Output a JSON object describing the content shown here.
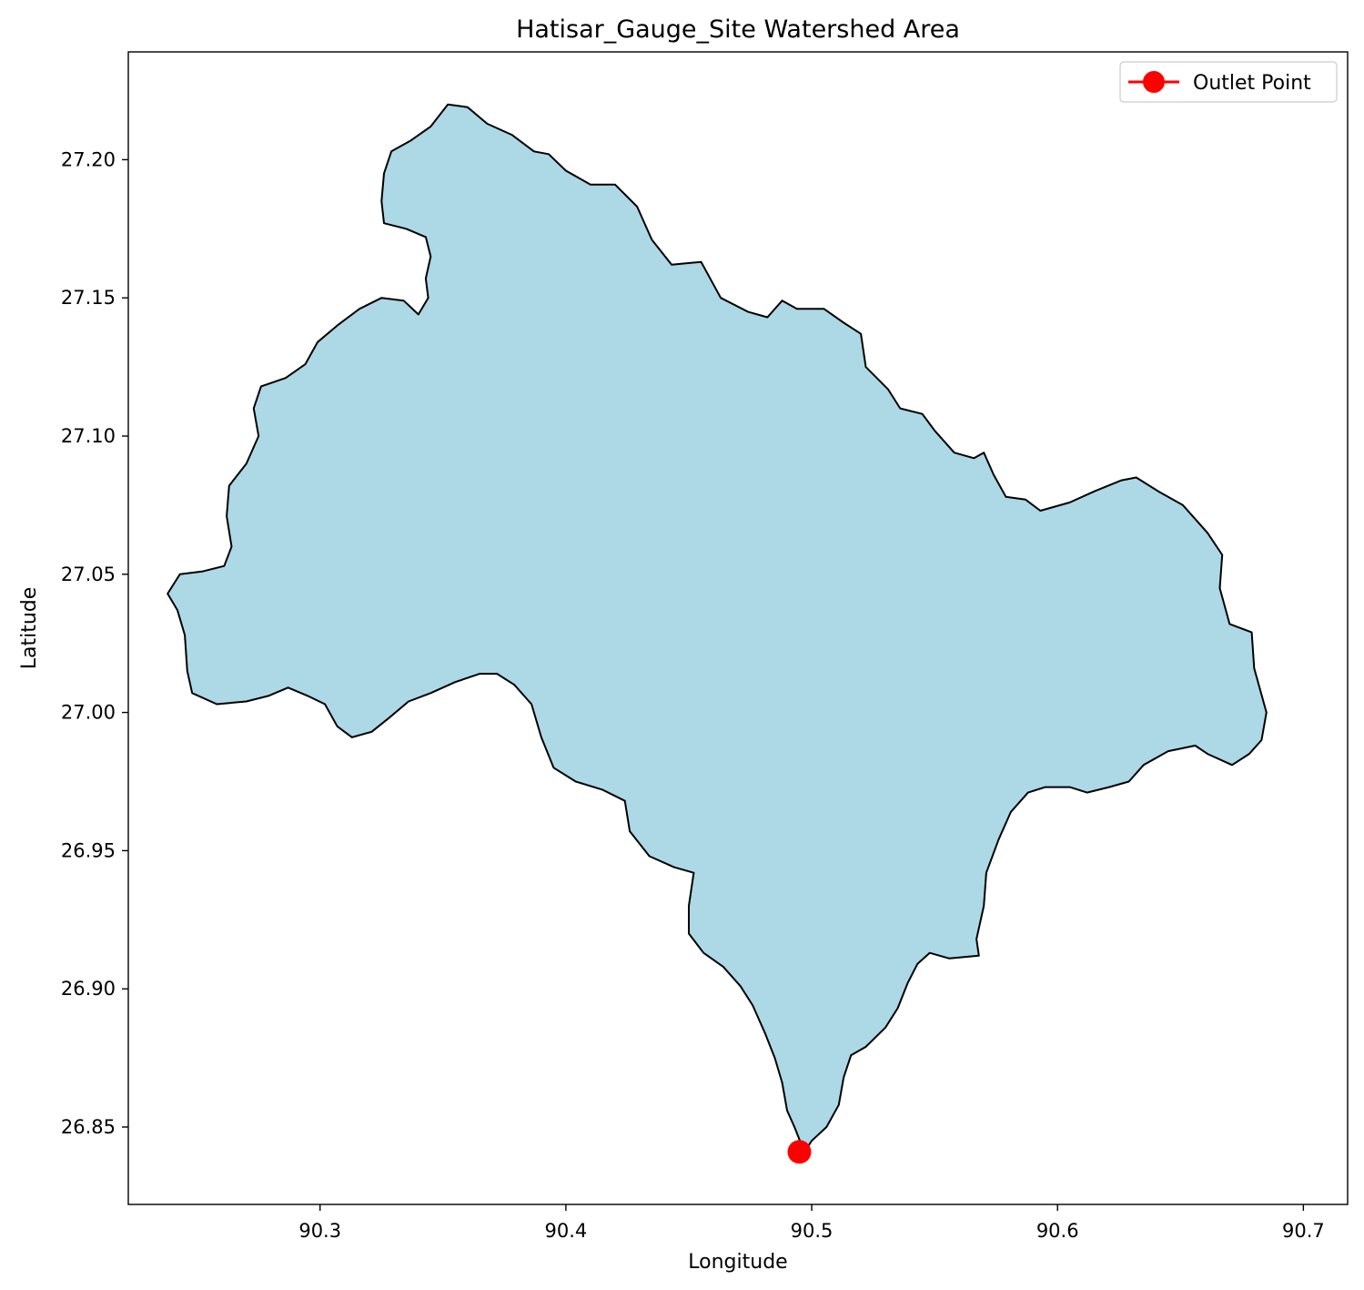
{
  "chart_data": {
    "type": "map",
    "title": "Hatisar_Gauge_Site Watershed Area",
    "xlabel": "Longitude",
    "ylabel": "Latitude",
    "xlim": [
      90.222,
      90.718
    ],
    "ylim": [
      26.822,
      27.239
    ],
    "x_ticks": [
      90.3,
      90.4,
      90.5,
      90.6,
      90.7
    ],
    "x_tick_labels": [
      "90.3",
      "90.4",
      "90.5",
      "90.6",
      "90.7"
    ],
    "y_ticks": [
      26.85,
      26.9,
      26.95,
      27.0,
      27.05,
      27.1,
      27.15,
      27.2
    ],
    "y_tick_labels": [
      "26.85",
      "26.90",
      "26.95",
      "27.00",
      "27.05",
      "27.10",
      "27.15",
      "27.20"
    ],
    "legend": {
      "placement": "top-right",
      "entries": [
        "Outlet Point"
      ]
    },
    "watershed_fill_color": "#add8e6",
    "outline_color": "#000000",
    "outlet_color": "#ff0000",
    "outlet_point": {
      "lon": 90.495,
      "lat": 26.841
    },
    "watershed_boundary": [
      [
        90.352,
        27.22
      ],
      [
        90.36,
        27.219
      ],
      [
        90.368,
        27.213
      ],
      [
        90.378,
        27.209
      ],
      [
        90.387,
        27.203
      ],
      [
        90.393,
        27.202
      ],
      [
        90.4,
        27.196
      ],
      [
        90.41,
        27.191
      ],
      [
        90.42,
        27.191
      ],
      [
        90.429,
        27.183
      ],
      [
        90.435,
        27.171
      ],
      [
        90.443,
        27.162
      ],
      [
        90.455,
        27.163
      ],
      [
        90.463,
        27.15
      ],
      [
        90.474,
        27.145
      ],
      [
        90.482,
        27.143
      ],
      [
        90.488,
        27.149
      ],
      [
        90.494,
        27.146
      ],
      [
        90.505,
        27.146
      ],
      [
        90.513,
        27.141
      ],
      [
        90.52,
        27.137
      ],
      [
        90.522,
        27.125
      ],
      [
        90.531,
        27.117
      ],
      [
        90.536,
        27.11
      ],
      [
        90.545,
        27.108
      ],
      [
        90.55,
        27.102
      ],
      [
        90.558,
        27.094
      ],
      [
        90.566,
        27.092
      ],
      [
        90.57,
        27.094
      ],
      [
        90.574,
        27.086
      ],
      [
        90.579,
        27.078
      ],
      [
        90.587,
        27.077
      ],
      [
        90.593,
        27.073
      ],
      [
        90.605,
        27.076
      ],
      [
        90.615,
        27.08
      ],
      [
        90.626,
        27.084
      ],
      [
        90.632,
        27.085
      ],
      [
        90.641,
        27.08
      ],
      [
        90.651,
        27.075
      ],
      [
        90.661,
        27.065
      ],
      [
        90.667,
        27.057
      ],
      [
        90.666,
        27.045
      ],
      [
        90.67,
        27.032
      ],
      [
        90.679,
        27.029
      ],
      [
        90.68,
        27.016
      ],
      [
        90.685,
        27.0
      ],
      [
        90.683,
        26.99
      ],
      [
        90.678,
        26.985
      ],
      [
        90.671,
        26.981
      ],
      [
        90.661,
        26.985
      ],
      [
        90.656,
        26.988
      ],
      [
        90.645,
        26.986
      ],
      [
        90.635,
        26.981
      ],
      [
        90.629,
        26.975
      ],
      [
        90.621,
        26.973
      ],
      [
        90.612,
        26.971
      ],
      [
        90.605,
        26.973
      ],
      [
        90.595,
        26.973
      ],
      [
        90.588,
        26.971
      ],
      [
        90.581,
        26.964
      ],
      [
        90.576,
        26.954
      ],
      [
        90.571,
        26.942
      ],
      [
        90.57,
        26.93
      ],
      [
        90.567,
        26.918
      ],
      [
        90.568,
        26.912
      ],
      [
        90.556,
        26.911
      ],
      [
        90.548,
        26.913
      ],
      [
        90.543,
        26.909
      ],
      [
        90.539,
        26.902
      ],
      [
        90.535,
        26.893
      ],
      [
        90.53,
        26.886
      ],
      [
        90.522,
        26.879
      ],
      [
        90.516,
        26.876
      ],
      [
        90.513,
        26.868
      ],
      [
        90.511,
        26.858
      ],
      [
        90.506,
        26.85
      ],
      [
        90.5,
        26.845
      ],
      [
        90.497,
        26.841
      ],
      [
        90.493,
        26.85
      ],
      [
        90.49,
        26.856
      ],
      [
        90.488,
        26.866
      ],
      [
        90.485,
        26.875
      ],
      [
        90.481,
        26.884
      ],
      [
        90.476,
        26.894
      ],
      [
        90.471,
        26.901
      ],
      [
        90.464,
        26.908
      ],
      [
        90.456,
        26.913
      ],
      [
        90.45,
        26.92
      ],
      [
        90.45,
        26.93
      ],
      [
        90.452,
        26.942
      ],
      [
        90.444,
        26.944
      ],
      [
        90.434,
        26.948
      ],
      [
        90.426,
        26.957
      ],
      [
        90.424,
        26.968
      ],
      [
        90.415,
        26.972
      ],
      [
        90.404,
        26.975
      ],
      [
        90.395,
        26.98
      ],
      [
        90.39,
        26.991
      ],
      [
        90.386,
        27.003
      ],
      [
        90.379,
        27.01
      ],
      [
        90.372,
        27.014
      ],
      [
        90.365,
        27.014
      ],
      [
        90.355,
        27.011
      ],
      [
        90.345,
        27.007
      ],
      [
        90.336,
        27.004
      ],
      [
        90.328,
        26.998
      ],
      [
        90.321,
        26.993
      ],
      [
        90.313,
        26.991
      ],
      [
        90.307,
        26.995
      ],
      [
        90.302,
        27.003
      ],
      [
        90.295,
        27.006
      ],
      [
        90.287,
        27.009
      ],
      [
        90.279,
        27.006
      ],
      [
        90.27,
        27.004
      ],
      [
        90.258,
        27.003
      ],
      [
        90.248,
        27.007
      ],
      [
        90.246,
        27.015
      ],
      [
        90.245,
        27.028
      ],
      [
        90.242,
        27.037
      ],
      [
        90.238,
        27.043
      ],
      [
        90.243,
        27.05
      ],
      [
        90.252,
        27.051
      ],
      [
        90.261,
        27.053
      ],
      [
        90.264,
        27.06
      ],
      [
        90.262,
        27.071
      ],
      [
        90.263,
        27.082
      ],
      [
        90.27,
        27.09
      ],
      [
        90.275,
        27.1
      ],
      [
        90.273,
        27.11
      ],
      [
        90.276,
        27.118
      ],
      [
        90.286,
        27.121
      ],
      [
        90.294,
        27.126
      ],
      [
        90.299,
        27.134
      ],
      [
        90.307,
        27.14
      ],
      [
        90.316,
        27.146
      ],
      [
        90.325,
        27.15
      ],
      [
        90.334,
        27.149
      ],
      [
        90.34,
        27.144
      ],
      [
        90.344,
        27.15
      ],
      [
        90.343,
        27.157
      ],
      [
        90.345,
        27.165
      ],
      [
        90.343,
        27.172
      ],
      [
        90.335,
        27.175
      ],
      [
        90.326,
        27.177
      ],
      [
        90.325,
        27.185
      ],
      [
        90.326,
        27.195
      ],
      [
        90.329,
        27.203
      ],
      [
        90.337,
        27.207
      ],
      [
        90.345,
        27.212
      ]
    ]
  }
}
